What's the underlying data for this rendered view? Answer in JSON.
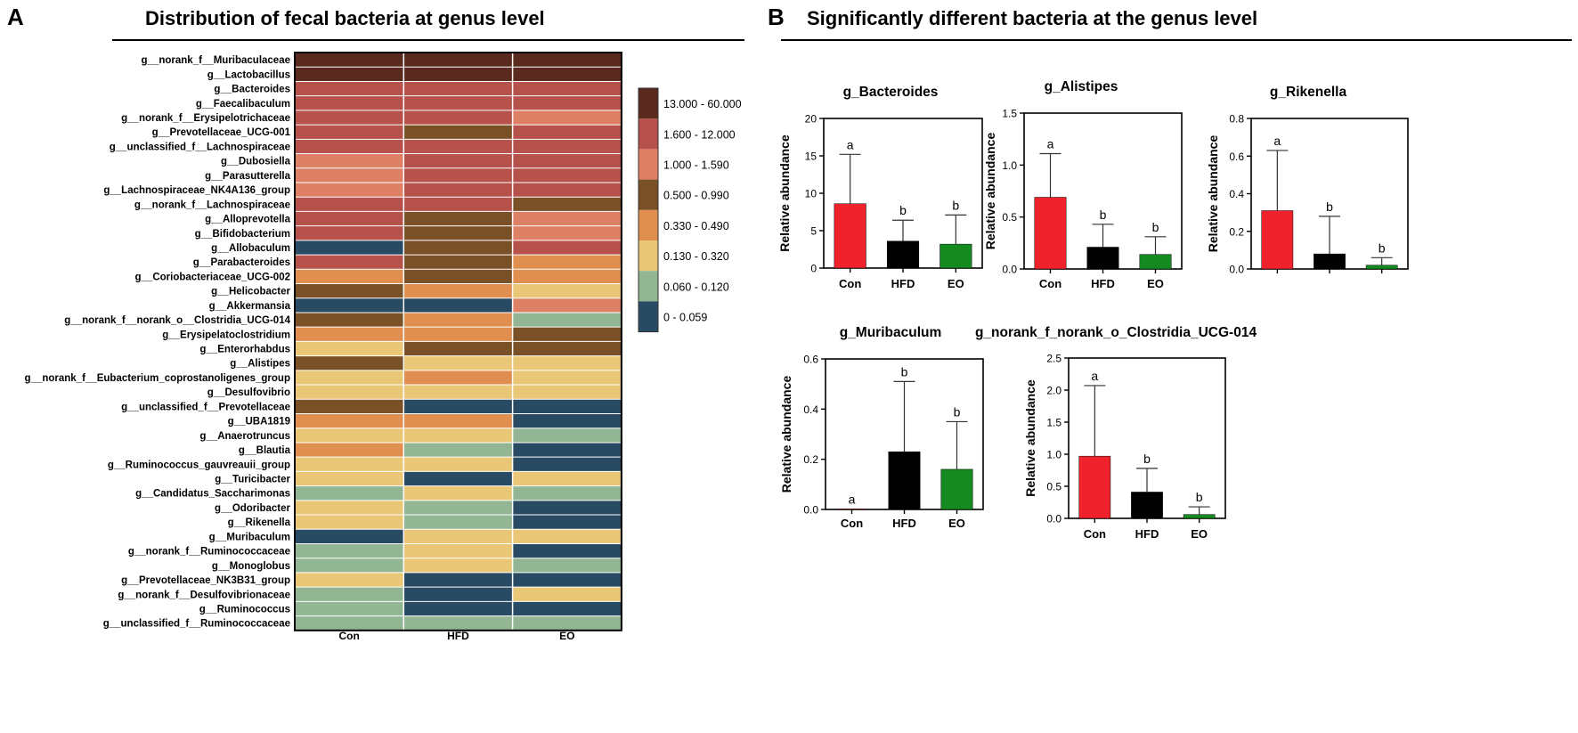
{
  "panel_a": {
    "letter": "A",
    "title": "Distribution of fecal bacteria at genus level",
    "legend_colors": [
      "#5b2a1e",
      "#b6514b",
      "#de8066",
      "#7a5127",
      "#e08f50",
      "#eac677",
      "#92b594",
      "#284a62"
    ],
    "legend_labels": [
      "13.000 - 60.000",
      "1.600 - 12.000",
      "1.000 - 1.590",
      "0.500 - 0.990",
      "0.330 - 0.490",
      "0.130 - 0.320",
      "0.060 - 0.120",
      "0 - 0.059"
    ]
  },
  "panel_b": {
    "letter": "B",
    "title": "Significantly different bacteria at the genus level"
  },
  "chart_data": [
    {
      "type": "heatmap",
      "title": "Distribution of fecal bacteria at genus level",
      "columns": [
        "Con",
        "HFD",
        "EO"
      ],
      "rows": [
        "g__norank_f__Muribaculaceae",
        "g__Lactobacillus",
        "g__Bacteroides",
        "g__Faecalibaculum",
        "g__norank_f__Erysipelotrichaceae",
        "g__Prevotellaceae_UCG-001",
        "g__unclassified_f__Lachnospiraceae",
        "g__Dubosiella",
        "g__Parasutterella",
        "g__Lachnospiraceae_NK4A136_group",
        "g__norank_f__Lachnospiraceae",
        "g__Alloprevotella",
        "g__Bifidobacterium",
        "g__Allobaculum",
        "g__Parabacteroides",
        "g__Coriobacteriaceae_UCG-002",
        "g__Helicobacter",
        "g__Akkermansia",
        "g__norank_f__norank_o__Clostridia_UCG-014",
        "g__Erysipelatoclostridium",
        "g__Enterorhabdus",
        "g__Alistipes",
        "g__norank_f__Eubacterium_coprostanoligenes_group",
        "g__Desulfovibrio",
        "g__unclassified_f__Prevotellaceae",
        "g__UBA1819",
        "g__Anaerotruncus",
        "g__Blautia",
        "g__Ruminococcus_gauvreauii_group",
        "g__Turicibacter",
        "g__Candidatus_Saccharimonas",
        "g__Odoribacter",
        "g__Rikenella",
        "g__Muribaculum",
        "g__norank_f__Ruminococcaceae",
        "g__Monoglobus",
        "g__Prevotellaceae_NK3B31_group",
        "g__norank_f__Desulfovibrionaceae",
        "g__Ruminococcus",
        "g__unclassified_f__Ruminococcaceae"
      ],
      "bin_labels": [
        "13.000 - 60.000",
        "1.600 - 12.000",
        "1.000 - 1.590",
        "0.500 - 0.990",
        "0.330 - 0.490",
        "0.130 - 0.320",
        "0.060 - 0.120",
        "0 - 0.059"
      ],
      "cell_bins": [
        [
          0,
          0,
          0
        ],
        [
          0,
          0,
          0
        ],
        [
          1,
          1,
          1
        ],
        [
          1,
          1,
          1
        ],
        [
          1,
          1,
          2
        ],
        [
          1,
          3,
          1
        ],
        [
          1,
          1,
          1
        ],
        [
          2,
          1,
          1
        ],
        [
          2,
          1,
          1
        ],
        [
          2,
          1,
          1
        ],
        [
          1,
          1,
          3
        ],
        [
          1,
          3,
          2
        ],
        [
          1,
          3,
          2
        ],
        [
          7,
          3,
          1
        ],
        [
          1,
          3,
          4
        ],
        [
          4,
          3,
          4
        ],
        [
          3,
          4,
          5
        ],
        [
          7,
          7,
          2
        ],
        [
          3,
          4,
          6
        ],
        [
          4,
          4,
          3
        ],
        [
          5,
          3,
          3
        ],
        [
          3,
          5,
          5
        ],
        [
          5,
          4,
          5
        ],
        [
          5,
          5,
          5
        ],
        [
          3,
          7,
          7
        ],
        [
          4,
          4,
          7
        ],
        [
          5,
          5,
          6
        ],
        [
          4,
          6,
          7
        ],
        [
          5,
          5,
          7
        ],
        [
          5,
          7,
          5
        ],
        [
          6,
          5,
          6
        ],
        [
          5,
          6,
          7
        ],
        [
          5,
          6,
          7
        ],
        [
          7,
          5,
          5
        ],
        [
          6,
          5,
          7
        ],
        [
          6,
          5,
          6
        ],
        [
          5,
          7,
          7
        ],
        [
          6,
          7,
          5
        ],
        [
          6,
          7,
          7
        ],
        [
          6,
          6,
          6
        ]
      ]
    },
    {
      "type": "bar",
      "title": "g_Bacteroides",
      "ylabel": "Relative abundance",
      "categories": [
        "Con",
        "HFD",
        "EO"
      ],
      "values": [
        8.6,
        3.6,
        3.2
      ],
      "errors": [
        6.6,
        2.8,
        3.9
      ],
      "significance": [
        "a",
        "b",
        "b"
      ],
      "ylim": [
        0,
        20
      ],
      "yticks": [
        0,
        5,
        10,
        15,
        20
      ]
    },
    {
      "type": "bar",
      "title": "g_Alistipes",
      "ylabel": "Relative abundance",
      "categories": [
        "Con",
        "HFD",
        "EO"
      ],
      "values": [
        0.69,
        0.21,
        0.14
      ],
      "errors": [
        0.42,
        0.22,
        0.17
      ],
      "significance": [
        "a",
        "b",
        "b"
      ],
      "ylim": [
        0,
        1.5
      ],
      "yticks": [
        0.0,
        0.5,
        1.0,
        1.5
      ]
    },
    {
      "type": "bar",
      "title": "g_Rikenella",
      "ylabel": "Relative abundance",
      "categories": [
        "",
        "",
        ""
      ],
      "values": [
        0.31,
        0.08,
        0.02
      ],
      "errors": [
        0.32,
        0.2,
        0.04
      ],
      "significance": [
        "a",
        "b",
        "b"
      ],
      "ylim": [
        0,
        0.8
      ],
      "yticks": [
        0.0,
        0.2,
        0.4,
        0.6,
        0.8
      ]
    },
    {
      "type": "bar",
      "title": "g_Muribaculum",
      "ylabel": "Relative abundance",
      "categories": [
        "Con",
        "HFD",
        "EO"
      ],
      "values": [
        0.002,
        0.23,
        0.16
      ],
      "errors": [
        0.0,
        0.28,
        0.19
      ],
      "significance": [
        "a",
        "b",
        "b"
      ],
      "ylim": [
        0,
        0.6
      ],
      "yticks": [
        0.0,
        0.2,
        0.4,
        0.6
      ]
    },
    {
      "type": "bar",
      "title": "g_norank_f_norank_o_Clostridia_UCG-014",
      "ylabel": "Relative abundance",
      "categories": [
        "Con",
        "HFD",
        "EO"
      ],
      "values": [
        0.97,
        0.41,
        0.06
      ],
      "errors": [
        1.1,
        0.37,
        0.12
      ],
      "significance": [
        "a",
        "b",
        "b"
      ],
      "ylim": [
        0,
        2.5
      ],
      "yticks": [
        0.0,
        0.5,
        1.0,
        1.5,
        2.0,
        2.5
      ]
    }
  ],
  "bar_colors": [
    "#f0232d",
    "#000000",
    "#148a20"
  ]
}
